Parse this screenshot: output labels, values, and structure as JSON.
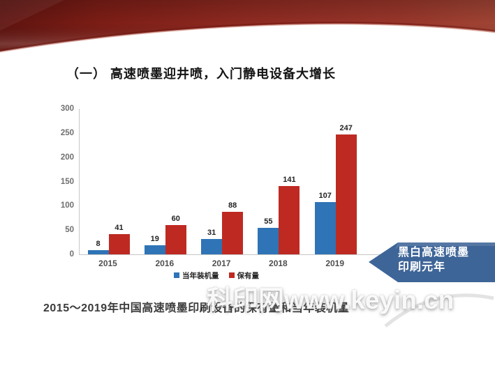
{
  "slide": {
    "title": "（一） 高速喷墨迎井喷，入门静电设备大增长",
    "caption": "2015～2019年中国高速喷墨印刷设备的保有量和当年装机量",
    "watermark": "科印网www.keyin.cn",
    "callout": {
      "line1": "黑白高速喷墨",
      "line2": "印刷元年",
      "color": "#3e6598"
    }
  },
  "chart_data": {
    "type": "bar",
    "title": "",
    "categories": [
      "2015",
      "2016",
      "2017",
      "2018",
      "2019"
    ],
    "series": [
      {
        "name": "当年装机量",
        "color": "#2e74b6",
        "values": [
          8,
          19,
          31,
          55,
          107
        ]
      },
      {
        "name": "保有量",
        "color": "#be2a22",
        "values": [
          41,
          60,
          88,
          141,
          247
        ]
      }
    ],
    "xlabel": "",
    "ylabel": "",
    "ylim": [
      0,
      300
    ],
    "yticks": [
      0,
      50,
      100,
      150,
      200,
      250,
      300
    ],
    "grid": false,
    "legend_position": "bottom",
    "data_labels": true
  },
  "colors": {
    "ribbon_dark": "#5f130f",
    "ribbon_mid": "#8e2a21",
    "ribbon_light": "#a04434",
    "axis_line": "#c6c6c6"
  }
}
